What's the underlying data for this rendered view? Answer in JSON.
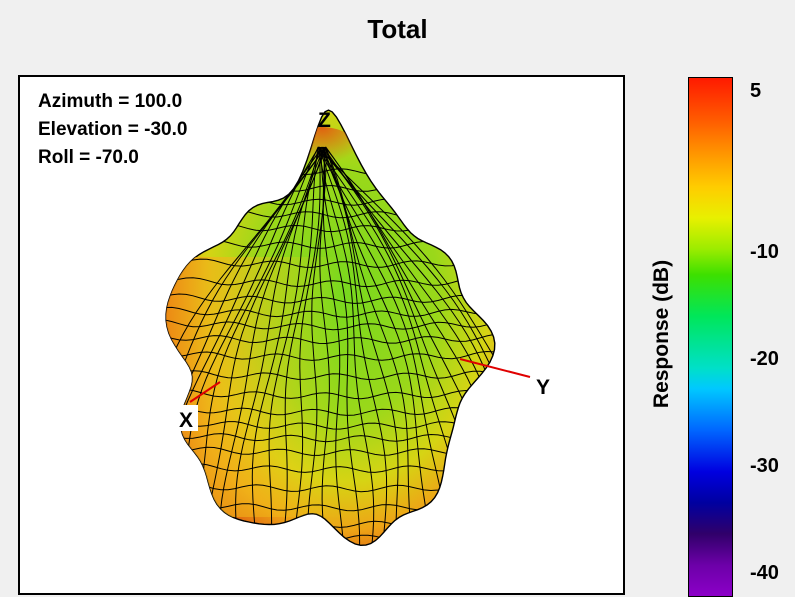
{
  "chart_data": {
    "type": "3d-surface",
    "title": "Total",
    "view": {
      "azimuth_text": "Azimuth = 100.0",
      "elevation_text": "Elevation = -30.0",
      "roll_text": "Roll = -70.0",
      "azimuth": 100.0,
      "elevation": -30.0,
      "roll": -70.0
    },
    "axes": {
      "x": "X",
      "y": "Y",
      "z": "Z"
    },
    "colorbar": {
      "label": "Response  (dB)",
      "ticks": [
        {
          "value": 5,
          "text": "5"
        },
        {
          "value": -10,
          "text": "-10"
        },
        {
          "value": -20,
          "text": "-20"
        },
        {
          "value": -30,
          "text": "-30"
        },
        {
          "value": -40,
          "text": "-40"
        }
      ],
      "range": [
        -40,
        5
      ]
    },
    "colors": {
      "mesh_line": "#000000",
      "axis_line": "#e00000",
      "surface_low": "#7fdc1c",
      "surface_high": "#e06810"
    }
  }
}
